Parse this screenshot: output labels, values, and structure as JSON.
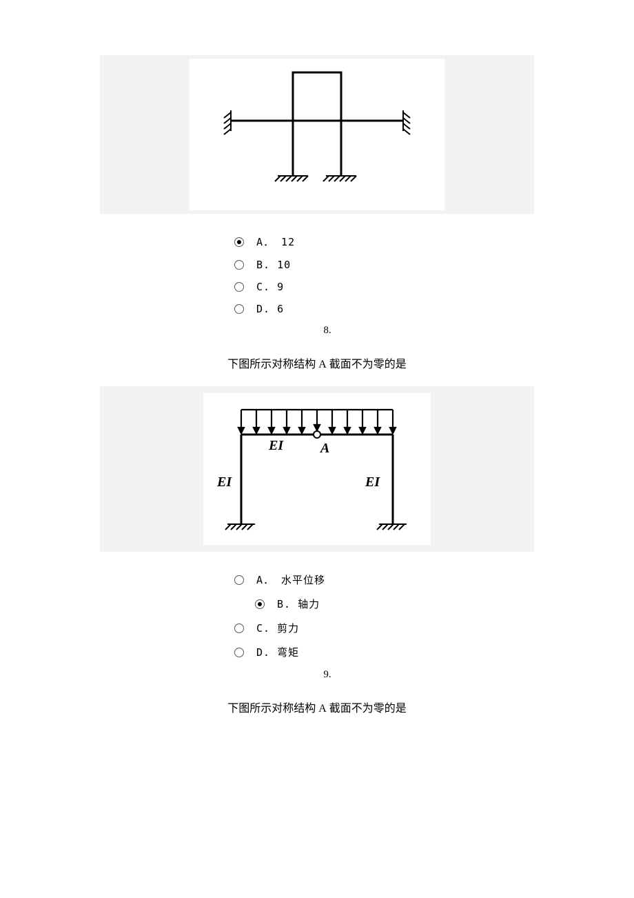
{
  "panel1": {
    "outer_bg": "#f2f2f2",
    "inner_bg": "#ffffff",
    "outer_w": 630,
    "outer_h": 230,
    "inner_w": 370,
    "inner_h": 220,
    "stroke": "#000000"
  },
  "q7_options": [
    {
      "letter": "A",
      "sep": "．",
      "text": "12",
      "selected": true,
      "indent": false
    },
    {
      "letter": "B",
      "sep": ".",
      "text": "10",
      "selected": false,
      "indent": false
    },
    {
      "letter": "C",
      "sep": ".",
      "text": "9",
      "selected": false,
      "indent": false
    },
    {
      "letter": "D",
      "sep": ".",
      "text": "6",
      "selected": false,
      "indent": false
    }
  ],
  "q8_number": "8.",
  "q8_text_pre": "下图所示对称结构 ",
  "q8_text_A": "A",
  "q8_text_post": " 截面不为零的是",
  "panel2": {
    "outer_bg": "#f2f2f2",
    "inner_bg": "#ffffff",
    "outer_w": 630,
    "outer_h": 240,
    "inner_w": 330,
    "inner_h": 220,
    "stroke": "#000000",
    "label_EI": "EI",
    "label_A": "A"
  },
  "q8_options": [
    {
      "letter": "A",
      "sep": "．",
      "text": "水平位移",
      "selected": false,
      "indent": false
    },
    {
      "letter": "B",
      "sep": ".",
      "text": "轴力",
      "selected": true,
      "indent": true
    },
    {
      "letter": "C",
      "sep": ".",
      "text": "剪力",
      "selected": false,
      "indent": false
    },
    {
      "letter": "D",
      "sep": ".",
      "text": "弯矩",
      "selected": false,
      "indent": false
    }
  ],
  "q9_number": "9.",
  "q9_text_pre": "下图所示对称结构 ",
  "q9_text_A": "A",
  "q9_text_post": " 截面不为零的是"
}
